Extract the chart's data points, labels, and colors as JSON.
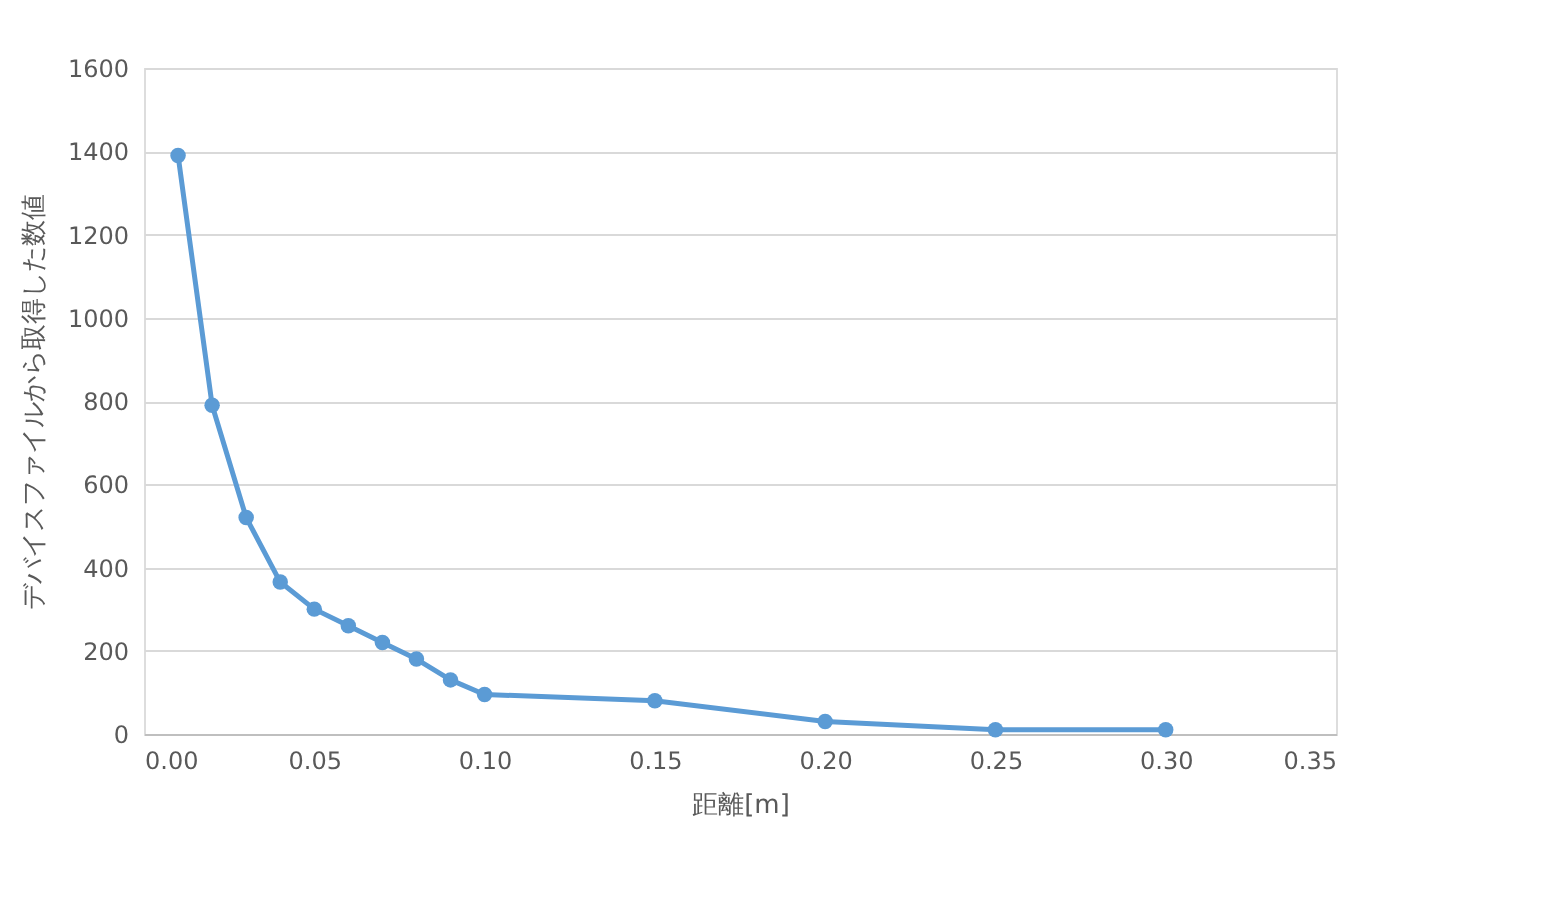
{
  "chart_data": {
    "type": "line",
    "xlabel": "距離[m]",
    "ylabel": "デバイスファイルから取得した数値",
    "x": [
      0.01,
      0.02,
      0.03,
      0.04,
      0.05,
      0.06,
      0.07,
      0.08,
      0.09,
      0.1,
      0.15,
      0.2,
      0.25,
      0.3
    ],
    "series": [
      {
        "color": "#5b9bd5",
        "values": [
          1390,
          790,
          520,
          365,
          300,
          260,
          220,
          180,
          130,
          95,
          80,
          30,
          10,
          10
        ]
      }
    ],
    "xlim": [
      0,
      0.35
    ],
    "xticks": [
      {
        "value": 0,
        "label": "0.00"
      },
      {
        "value": 0.05,
        "label": "0.05"
      },
      {
        "value": 0.1,
        "label": "0.10"
      },
      {
        "value": 0.15,
        "label": "0.15"
      },
      {
        "value": 0.2,
        "label": "0.20"
      },
      {
        "value": 0.25,
        "label": "0.25"
      },
      {
        "value": 0.3,
        "label": "0.30"
      },
      {
        "value": 0.35,
        "label": "0.35"
      }
    ],
    "ylim": [
      0,
      1600
    ],
    "yticks": [
      0,
      200,
      400,
      600,
      800,
      1000,
      1200,
      1400,
      1600
    ],
    "grid": "y",
    "marker": "circle",
    "line_style": "solid"
  }
}
